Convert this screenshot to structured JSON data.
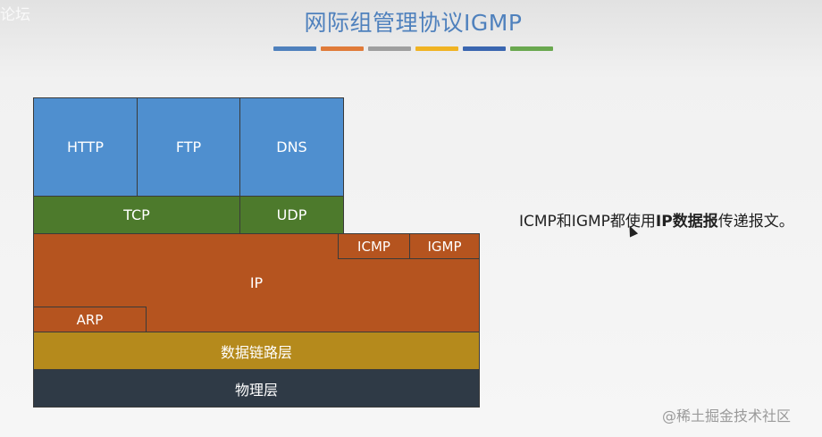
{
  "watermark_top": "论坛",
  "title": "网际组管理协议IGMP",
  "title_bars": [
    "#4f81bd",
    "#e07b39",
    "#9e9e9e",
    "#f0b323",
    "#3a66b0",
    "#6aa84f"
  ],
  "diagram": {
    "app": [
      "HTTP",
      "FTP",
      "DNS"
    ],
    "transport": [
      "TCP",
      "UDP"
    ],
    "network": "IP",
    "icmp": "ICMP",
    "igmp": "IGMP",
    "arp": "ARP",
    "datalink": "数据链路层",
    "physical": "物理层",
    "colors": {
      "app": "#4f8fcf",
      "transport": "#4d7a2c",
      "network": "#b5541f",
      "datalink": "#b58a1c",
      "physical": "#2f3a46"
    }
  },
  "note": {
    "p1": "ICMP和IGMP都使用",
    "p2": "IP数据报",
    "p3": "传递报文。"
  },
  "credit": "@稀土掘金技术社区"
}
